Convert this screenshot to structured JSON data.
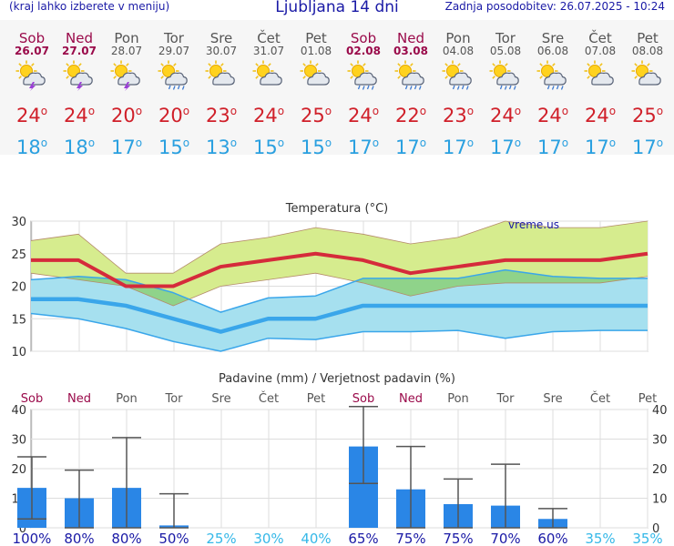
{
  "header": {
    "left_link": "(kraj lahko izberete v meniju)",
    "title": "Ljubljana 14 dni",
    "updated": "Zadnja posodobitev: 26.07.2025 - 10:24"
  },
  "days": [
    {
      "name": "Sob",
      "date": "26.07",
      "weekend": true,
      "icon": "storm-icon",
      "tmax": "24",
      "tmin": "18"
    },
    {
      "name": "Ned",
      "date": "27.07",
      "weekend": true,
      "icon": "storm-icon",
      "tmax": "24",
      "tmin": "18"
    },
    {
      "name": "Pon",
      "date": "28.07",
      "weekend": false,
      "icon": "storm-icon",
      "tmax": "20",
      "tmin": "17"
    },
    {
      "name": "Tor",
      "date": "29.07",
      "weekend": false,
      "icon": "sun-rain-icon",
      "tmax": "20",
      "tmin": "15"
    },
    {
      "name": "Sre",
      "date": "30.07",
      "weekend": false,
      "icon": "sun-cloud-icon",
      "tmax": "23",
      "tmin": "13"
    },
    {
      "name": "Čet",
      "date": "31.07",
      "weekend": false,
      "icon": "sun-cloud-icon",
      "tmax": "24",
      "tmin": "15"
    },
    {
      "name": "Pet",
      "date": "01.08",
      "weekend": false,
      "icon": "sun-cloud-icon",
      "tmax": "25",
      "tmin": "15"
    },
    {
      "name": "Sob",
      "date": "02.08",
      "weekend": true,
      "icon": "sun-rain-icon",
      "tmax": "24",
      "tmin": "17"
    },
    {
      "name": "Ned",
      "date": "03.08",
      "weekend": true,
      "icon": "sun-rain-icon",
      "tmax": "22",
      "tmin": "17"
    },
    {
      "name": "Pon",
      "date": "04.08",
      "weekend": false,
      "icon": "sun-rain-icon",
      "tmax": "23",
      "tmin": "17"
    },
    {
      "name": "Tor",
      "date": "05.08",
      "weekend": false,
      "icon": "sun-rain-icon",
      "tmax": "24",
      "tmin": "17"
    },
    {
      "name": "Sre",
      "date": "06.08",
      "weekend": false,
      "icon": "sun-rain-icon",
      "tmax": "24",
      "tmin": "17"
    },
    {
      "name": "Čet",
      "date": "07.08",
      "weekend": false,
      "icon": "sun-cloud-icon",
      "tmax": "24",
      "tmin": "17"
    },
    {
      "name": "Pet",
      "date": "08.08",
      "weekend": false,
      "icon": "sun-cloud-icon",
      "tmax": "25",
      "tmin": "17"
    }
  ],
  "colors": {
    "max_line": "#d52b3b",
    "min_line": "#3aa6ea",
    "max_band": "#d6ec8e",
    "min_band": "#a6e0ef",
    "overlap": "#8fd38a",
    "bar": "#2a86e6",
    "weekend": "#9a0a4a",
    "weekday": "#555555",
    "prob_high": "#1a1aa6",
    "prob_low": "#35b8e8"
  },
  "chart_data": [
    {
      "type": "line",
      "title": "Temperatura (°C)",
      "watermark": "vreme.us",
      "ylim": [
        10,
        30
      ],
      "yticks": [
        "30",
        "25",
        "20",
        "15",
        "10"
      ],
      "grid": true,
      "x": [
        "26.07",
        "27.07",
        "28.07",
        "29.07",
        "30.07",
        "31.07",
        "01.08",
        "02.08",
        "03.08",
        "04.08",
        "05.08",
        "06.08",
        "07.08",
        "08.08"
      ],
      "series": [
        {
          "key": "tmax",
          "values": [
            24,
            24,
            20,
            20,
            23,
            24,
            25,
            24,
            22,
            23,
            24,
            24,
            24,
            25
          ]
        },
        {
          "key": "tmax_upper",
          "values": [
            27,
            28,
            22,
            22,
            26.5,
            27.5,
            29,
            28,
            26.5,
            27.5,
            30,
            29,
            29,
            30
          ]
        },
        {
          "key": "tmax_lower",
          "values": [
            22,
            21,
            20,
            17,
            20,
            21,
            22,
            20.5,
            18.5,
            20,
            20.5,
            20.5,
            20.5,
            21.5
          ]
        },
        {
          "key": "tmin",
          "values": [
            18,
            18,
            17,
            15,
            13,
            15,
            15,
            17,
            17,
            17,
            17,
            17,
            17,
            17
          ]
        },
        {
          "key": "tmin_upper",
          "values": [
            21,
            21.5,
            21,
            19,
            16,
            18.2,
            18.5,
            21.2,
            21.2,
            21.2,
            22.5,
            21.5,
            21.2,
            21.2
          ]
        },
        {
          "key": "tmin_lower",
          "values": [
            15.8,
            15,
            13.5,
            11.5,
            10,
            12,
            11.8,
            13,
            13,
            13.2,
            12,
            13,
            13.2,
            13.2
          ]
        }
      ]
    },
    {
      "type": "bar",
      "title": "Padavine (mm) / Verjetnost padavin (%)",
      "ylim": [
        0,
        40
      ],
      "yticks": [
        "40",
        "30",
        "20",
        "10",
        "0"
      ],
      "grid": true,
      "categories": [
        "Sob",
        "Ned",
        "Pon",
        "Tor",
        "Sre",
        "Čet",
        "Pet",
        "Sob",
        "Ned",
        "Pon",
        "Tor",
        "Sre",
        "Čet",
        "Pet"
      ],
      "weekend": [
        true,
        true,
        false,
        false,
        false,
        false,
        false,
        true,
        true,
        false,
        false,
        false,
        false,
        false
      ],
      "values": [
        13.5,
        10,
        13.5,
        0.8,
        0,
        0,
        0,
        27.5,
        13,
        8,
        7.5,
        3,
        0,
        0
      ],
      "err_low": [
        3,
        0,
        0,
        0,
        null,
        null,
        null,
        15,
        0,
        0,
        0,
        0,
        null,
        null
      ],
      "err_high": [
        24,
        19.5,
        30.5,
        11.5,
        null,
        null,
        null,
        41,
        27.5,
        16.5,
        21.5,
        6.5,
        null,
        null
      ],
      "probability": [
        "100%",
        "80%",
        "80%",
        "50%",
        "25%",
        "30%",
        "40%",
        "65%",
        "75%",
        "75%",
        "70%",
        "60%",
        "35%",
        "35%"
      ],
      "prob_high": [
        true,
        true,
        true,
        true,
        false,
        false,
        false,
        true,
        true,
        true,
        true,
        true,
        false,
        false
      ]
    }
  ]
}
